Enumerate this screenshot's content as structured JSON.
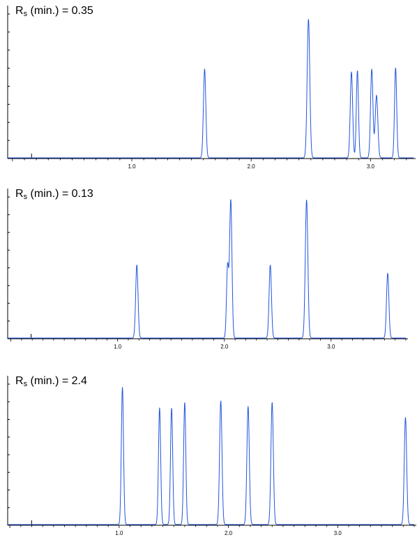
{
  "chart_data": [
    {
      "type": "line",
      "title_main": "R",
      "title_sub": "s",
      "title_rest": " (min.) = 0.35",
      "x_ticks": [
        "1.0",
        "2.0",
        "3.0"
      ],
      "x_tick_values": [
        1.0,
        2.0,
        3.0
      ],
      "xlim": [
        -0.04,
        3.36
      ],
      "peaks": [
        {
          "t": 1.61,
          "h": 0.64,
          "w": 0.01
        },
        {
          "t": 2.48,
          "h": 1.0,
          "w": 0.011
        },
        {
          "t": 2.84,
          "h": 0.62,
          "w": 0.01
        },
        {
          "t": 2.89,
          "h": 0.63,
          "w": 0.009
        },
        {
          "t": 3.01,
          "h": 0.64,
          "w": 0.01
        },
        {
          "t": 3.05,
          "h": 0.45,
          "w": 0.011
        },
        {
          "t": 3.21,
          "h": 0.65,
          "w": 0.009
        }
      ],
      "line_color": "#2255dd"
    },
    {
      "type": "line",
      "title_main": "R",
      "title_sub": "s",
      "title_rest": " (min.) = 0.13",
      "x_ticks": [
        "1.0",
        "2.0",
        "3.0"
      ],
      "x_tick_values": [
        1.0,
        2.0,
        3.0
      ],
      "xlim": [
        -0.03,
        3.7
      ],
      "peaks": [
        {
          "t": 1.18,
          "h": 0.53,
          "w": 0.011
        },
        {
          "t": 2.03,
          "h": 0.52,
          "w": 0.01
        },
        {
          "t": 2.06,
          "h": 1.0,
          "w": 0.011
        },
        {
          "t": 2.43,
          "h": 0.53,
          "w": 0.011
        },
        {
          "t": 2.77,
          "h": 1.0,
          "w": 0.012
        },
        {
          "t": 3.53,
          "h": 0.47,
          "w": 0.011
        }
      ],
      "line_color": "#2255dd"
    },
    {
      "type": "line",
      "title_main": "R",
      "title_sub": "s",
      "title_rest": " (min.) = 2.4",
      "x_ticks": [
        "1.0",
        "2.0",
        "3.0"
      ],
      "x_tick_values": [
        1.0,
        2.0,
        3.0
      ],
      "xlim": [
        -0.02,
        3.7
      ],
      "peaks": [
        {
          "t": 1.03,
          "h": 1.0,
          "w": 0.01
        },
        {
          "t": 1.37,
          "h": 0.85,
          "w": 0.01
        },
        {
          "t": 1.48,
          "h": 0.85,
          "w": 0.01
        },
        {
          "t": 1.6,
          "h": 0.89,
          "w": 0.01
        },
        {
          "t": 1.93,
          "h": 0.9,
          "w": 0.011
        },
        {
          "t": 2.18,
          "h": 0.86,
          "w": 0.011
        },
        {
          "t": 2.4,
          "h": 0.89,
          "w": 0.011
        },
        {
          "t": 3.62,
          "h": 0.78,
          "w": 0.011
        }
      ],
      "line_color": "#2255dd"
    }
  ]
}
